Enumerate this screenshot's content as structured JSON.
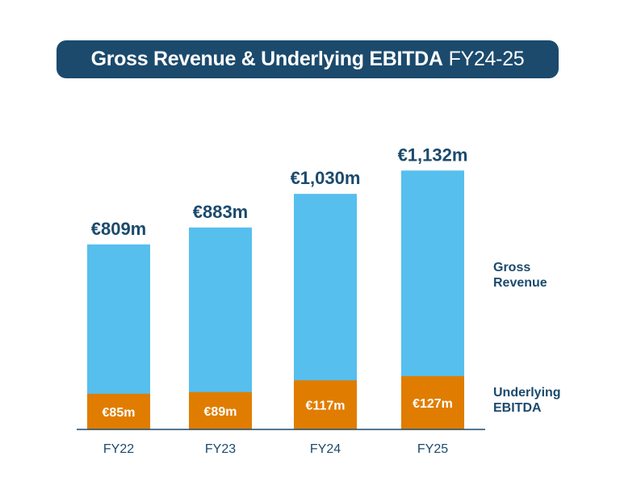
{
  "chart_data": {
    "type": "bar",
    "stacked": true,
    "title": "Gross Revenue & Underlying EBITDA",
    "title_suffix": "FY24-25",
    "categories": [
      "FY22",
      "FY23",
      "FY24",
      "FY25"
    ],
    "series": [
      {
        "name": "Underlying EBITDA",
        "values": [
          85,
          89,
          117,
          127
        ],
        "labels": [
          "€85m",
          "€89m",
          "€117m",
          "€127m"
        ],
        "color": "#e07d00"
      },
      {
        "name": "Gross Revenue",
        "values": [
          809,
          883,
          1030,
          1132
        ],
        "labels": [
          "€809m",
          "€883m",
          "€1,030m",
          "€1,132m"
        ],
        "color": "#56bfee"
      }
    ],
    "xlabel": "",
    "ylabel": "",
    "ylim": [
      0,
      1200
    ],
    "grid": false,
    "legend_placement": "right",
    "text_color": "#1b4a6d"
  }
}
